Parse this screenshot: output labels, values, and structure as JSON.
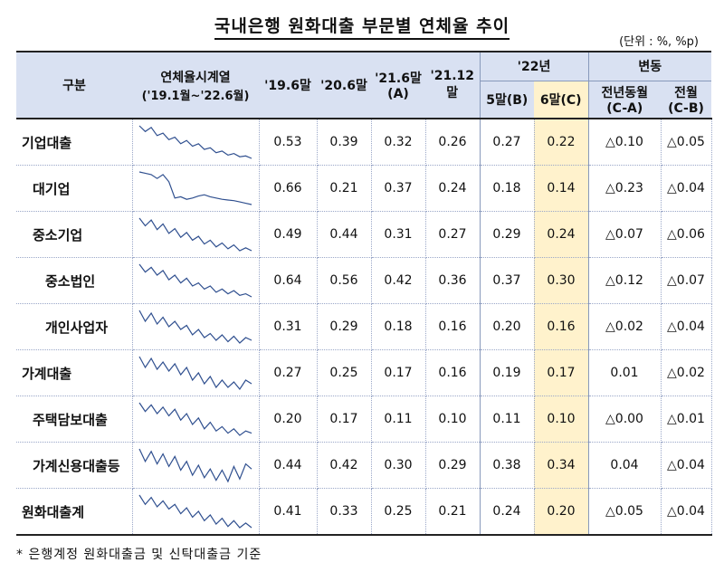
{
  "title": "국내은행 원화대출 부문별 연체율 추이",
  "unit": "(단위 : %, %p)",
  "header": {
    "category": "구분",
    "series_title": "연체율시계열",
    "series_range": "('19.1월~'22.6월)",
    "col_19_6": "'19.6말",
    "col_20_6": "'20.6말",
    "col_21_6": "'21.6말",
    "col_21_6_sub": "(A)",
    "col_21_12": "'21.12말",
    "col_22": "'22년",
    "col_5": "5말(B)",
    "col_6": "6말(C)",
    "change": "변동",
    "yoy": "전년동월",
    "yoy_sub": "(C-A)",
    "mom": "전월",
    "mom_sub": "(C-B)"
  },
  "rows": [
    {
      "label": "기업대출",
      "v1": "0.53",
      "v2": "0.39",
      "v3": "0.32",
      "v4": "0.26",
      "v5": "0.27",
      "v6": "0.22",
      "d1": "△0.10",
      "d2": "△0.05"
    },
    {
      "label": "대기업",
      "v1": "0.66",
      "v2": "0.21",
      "v3": "0.37",
      "v4": "0.24",
      "v5": "0.18",
      "v6": "0.14",
      "d1": "△0.23",
      "d2": "△0.04"
    },
    {
      "label": "중소기업",
      "v1": "0.49",
      "v2": "0.44",
      "v3": "0.31",
      "v4": "0.27",
      "v5": "0.29",
      "v6": "0.24",
      "d1": "△0.07",
      "d2": "△0.06"
    },
    {
      "label": "중소법인",
      "v1": "0.64",
      "v2": "0.56",
      "v3": "0.42",
      "v4": "0.36",
      "v5": "0.37",
      "v6": "0.30",
      "d1": "△0.12",
      "d2": "△0.07"
    },
    {
      "label": "개인사업자",
      "v1": "0.31",
      "v2": "0.29",
      "v3": "0.18",
      "v4": "0.16",
      "v5": "0.20",
      "v6": "0.16",
      "d1": "△0.02",
      "d2": "△0.04"
    },
    {
      "label": "가계대출",
      "v1": "0.27",
      "v2": "0.25",
      "v3": "0.17",
      "v4": "0.16",
      "v5": "0.19",
      "v6": "0.17",
      "d1": "0.01",
      "d2": "△0.02"
    },
    {
      "label": "주택담보대출",
      "v1": "0.20",
      "v2": "0.17",
      "v3": "0.11",
      "v4": "0.10",
      "v5": "0.11",
      "v6": "0.10",
      "d1": "△0.00",
      "d2": "△0.01"
    },
    {
      "label": "가계신용대출등",
      "v1": "0.44",
      "v2": "0.42",
      "v3": "0.30",
      "v4": "0.29",
      "v5": "0.38",
      "v6": "0.34",
      "d1": "0.04",
      "d2": "△0.04"
    },
    {
      "label": "원화대출계",
      "v1": "0.41",
      "v2": "0.33",
      "v3": "0.25",
      "v4": "0.21",
      "v5": "0.24",
      "v6": "0.20",
      "d1": "△0.05",
      "d2": "△0.04"
    }
  ],
  "note": "* 은행계정 원화대출금 및 신탁대출금 기준",
  "colors": {
    "header_bg": "#d9e1f2",
    "highlight": "#fff2cc",
    "spark": "#2f4f8f"
  }
}
